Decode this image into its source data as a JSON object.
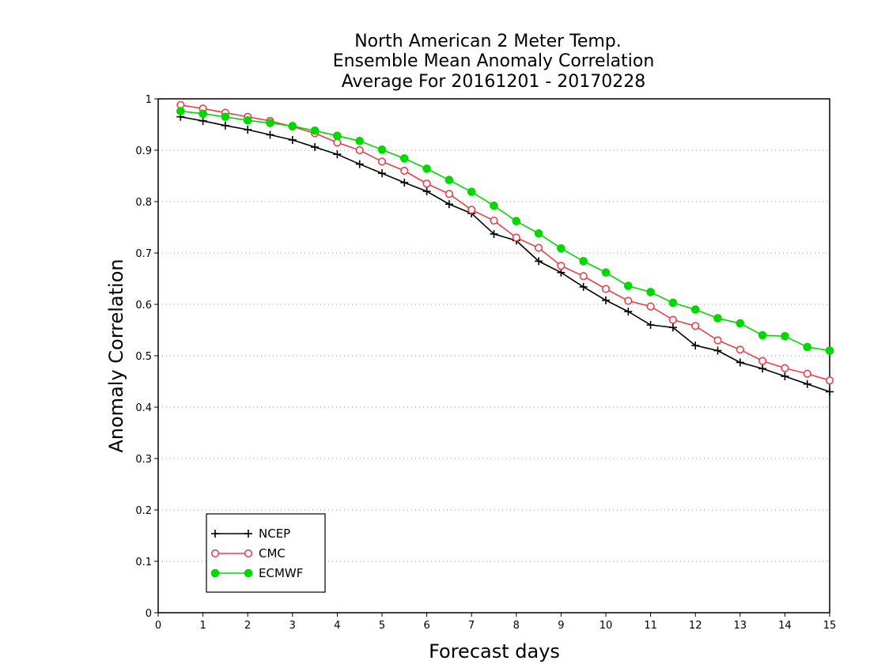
{
  "chart_data": {
    "type": "line",
    "title": [
      "North American 2 Meter Temp.",
      "Ensemble Mean Anomaly Correlation",
      "Average For 20161201 - 20170228"
    ],
    "xlabel": "Forecast days",
    "ylabel": "Anomaly Correlation",
    "xlim": [
      0,
      15
    ],
    "ylim": [
      0,
      1
    ],
    "xticks": [
      "0",
      "1",
      "2",
      "3",
      "4",
      "5",
      "6",
      "7",
      "8",
      "9",
      "10",
      "11",
      "12",
      "13",
      "14",
      "15"
    ],
    "yticks": [
      "0",
      "0.1",
      "0.2",
      "0.3",
      "0.4",
      "0.5",
      "0.6",
      "0.7",
      "0.8",
      "0.9",
      "1"
    ],
    "grid": "horizontal dotted",
    "legend": "bottom-left",
    "x": [
      0.5,
      1,
      1.5,
      2,
      2.5,
      3,
      3.5,
      4,
      4.5,
      5,
      5.5,
      6,
      6.5,
      7,
      7.5,
      8,
      8.5,
      9,
      9.5,
      10,
      10.5,
      11,
      11.5,
      12,
      12.5,
      13,
      13.5,
      14,
      14.5,
      15
    ],
    "series": [
      {
        "name": "NCEP",
        "color": "#000000",
        "marker": "plus",
        "values": [
          0.965,
          0.957,
          0.948,
          0.94,
          0.93,
          0.92,
          0.906,
          0.892,
          0.873,
          0.855,
          0.837,
          0.82,
          0.795,
          0.777,
          0.737,
          0.724,
          0.684,
          0.662,
          0.634,
          0.608,
          0.586,
          0.56,
          0.555,
          0.52,
          0.51,
          0.487,
          0.475,
          0.46,
          0.445,
          0.43
        ]
      },
      {
        "name": "CMC",
        "color": "#e8414b",
        "marker": "open-circle",
        "values": [
          0.988,
          0.981,
          0.973,
          0.965,
          0.957,
          0.946,
          0.933,
          0.915,
          0.9,
          0.878,
          0.86,
          0.835,
          0.815,
          0.784,
          0.763,
          0.73,
          0.71,
          0.675,
          0.655,
          0.63,
          0.607,
          0.596,
          0.57,
          0.558,
          0.53,
          0.512,
          0.49,
          0.476,
          0.465,
          0.452
        ]
      },
      {
        "name": "ECMWF",
        "color": "#00d800",
        "marker": "filled-circle",
        "values": [
          0.976,
          0.971,
          0.965,
          0.958,
          0.953,
          0.947,
          0.938,
          0.928,
          0.918,
          0.901,
          0.884,
          0.864,
          0.842,
          0.819,
          0.792,
          0.762,
          0.738,
          0.709,
          0.684,
          0.662,
          0.636,
          0.624,
          0.603,
          0.59,
          0.573,
          0.563,
          0.54,
          0.538,
          0.517,
          0.51
        ]
      }
    ]
  }
}
